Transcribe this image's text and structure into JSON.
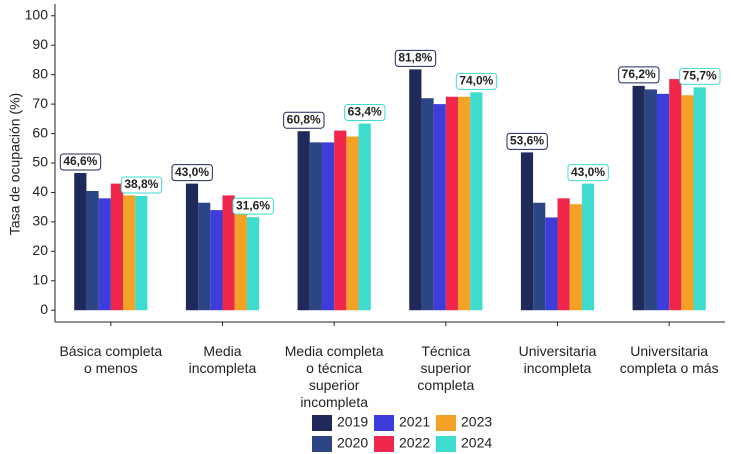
{
  "chart_data": {
    "type": "bar",
    "y_label": "Tasa de ocupación (%)",
    "categories": [
      "Básica completa\no menos",
      "Media\nincompleta",
      "Media completa\no técnica\nsuperior\nincompleta",
      "Técnica\nsuperior\ncompleta",
      "Universitaria\nincompleta",
      "Universitaria\ncompleta o más"
    ],
    "series": [
      {
        "name": "2019",
        "color": "#1f2a5a",
        "values": [
          46.6,
          43.0,
          60.8,
          81.8,
          53.6,
          76.2
        ],
        "value_labels": [
          "46,6%",
          "43,0%",
          "60,8%",
          "81,8%",
          "53,6%",
          "76,2%"
        ]
      },
      {
        "name": "2020",
        "color": "#2c4585",
        "values": [
          40.5,
          36.5,
          57,
          72,
          36.5,
          75
        ]
      },
      {
        "name": "2021",
        "color": "#3d3ddc",
        "values": [
          38,
          34,
          57,
          70,
          31.5,
          73.5
        ]
      },
      {
        "name": "2022",
        "color": "#f0264a",
        "values": [
          43,
          39,
          61,
          72.5,
          38,
          78.5
        ]
      },
      {
        "name": "2023",
        "color": "#f4a226",
        "values": [
          39,
          33,
          59,
          72.5,
          36,
          73
        ]
      },
      {
        "name": "2024",
        "color": "#3edccf",
        "values": [
          38.8,
          31.6,
          63.4,
          74.0,
          43.0,
          75.7
        ],
        "value_labels": [
          "38,8%",
          "31,6%",
          "63,4%",
          "74,0%",
          "43,0%",
          "75,7%"
        ]
      }
    ],
    "ylim": [
      -4,
      104
    ],
    "yticks": [
      0,
      10,
      20,
      30,
      40,
      50,
      60,
      70,
      80,
      90,
      100
    ],
    "grid": false,
    "legend": "bottom"
  }
}
